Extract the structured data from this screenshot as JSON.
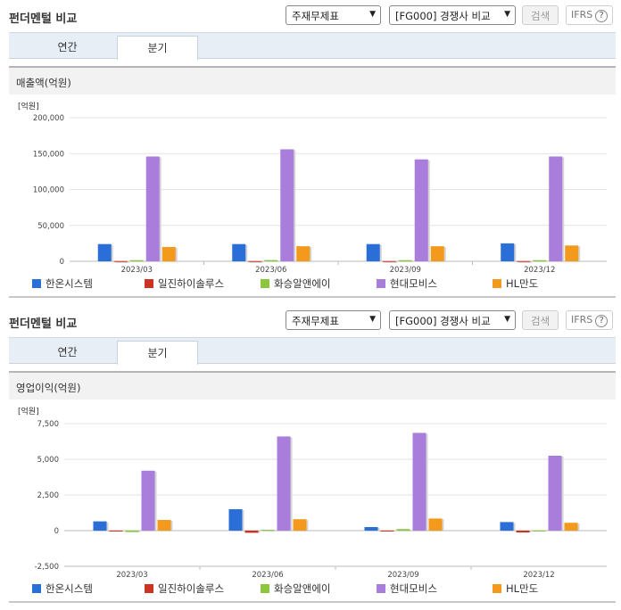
{
  "panels": [
    {
      "header": {
        "title": "펀더멘털 비교",
        "select1": "주재무제표",
        "select2": "[FG000] 경쟁사 비교",
        "search_label": "검색",
        "ifrs_label": "IFRS",
        "help_label": "?"
      },
      "tabs": [
        {
          "label": "연간"
        },
        {
          "label": "분기"
        }
      ],
      "chart_title": "매출액(억원)"
    },
    {
      "header": {
        "title": "펀더멘털 비교",
        "select1": "주재무제표",
        "select2": "[FG000] 경쟁사 비교",
        "search_label": "검색",
        "ifrs_label": "IFRS",
        "help_label": "?"
      },
      "tabs": [
        {
          "label": "연간"
        },
        {
          "label": "분기"
        }
      ],
      "chart_title": "영업이익(억원)"
    }
  ],
  "legend": [
    {
      "name": "한온시스템",
      "color": "#2a6ed8"
    },
    {
      "name": "일진하이솔루스",
      "color": "#cc3322"
    },
    {
      "name": "화승알앤에이",
      "color": "#8cc63f"
    },
    {
      "name": "현대모비스",
      "color": "#a97ddb"
    },
    {
      "name": "HL만도",
      "color": "#f39a1d"
    }
  ],
  "chart_data": [
    {
      "type": "bar",
      "unit_label": "[억원]",
      "categories": [
        "2023/03",
        "2023/06",
        "2023/09",
        "2023/12"
      ],
      "yticks": [
        "0",
        "50,000",
        "100,000",
        "150,000",
        "200,000"
      ],
      "ylim": [
        0,
        200000
      ],
      "series": [
        {
          "name": "한온시스템",
          "values": [
            24000,
            24000,
            24000,
            25000
          ]
        },
        {
          "name": "일진하이솔루스",
          "values": [
            300,
            300,
            300,
            300
          ]
        },
        {
          "name": "화승알앤에이",
          "values": [
            1600,
            1700,
            1600,
            1600
          ]
        },
        {
          "name": "현대모비스",
          "values": [
            146000,
            156000,
            142000,
            146000
          ]
        },
        {
          "name": "HL만도",
          "values": [
            20000,
            21000,
            21000,
            22000
          ]
        }
      ]
    },
    {
      "type": "bar",
      "unit_label": "[억원]",
      "categories": [
        "2023/03",
        "2023/06",
        "2023/09",
        "2023/12"
      ],
      "yticks": [
        "-2,500",
        "0",
        "2,500",
        "5,000",
        "7,500"
      ],
      "ylim": [
        -2500,
        7500
      ],
      "series": [
        {
          "name": "한온시스템",
          "values": [
            650,
            1500,
            250,
            600
          ]
        },
        {
          "name": "일진하이솔루스",
          "values": [
            -20,
            -150,
            -30,
            -130
          ]
        },
        {
          "name": "화승알앤에이",
          "values": [
            -100,
            60,
            110,
            -50
          ]
        },
        {
          "name": "현대모비스",
          "values": [
            4200,
            6600,
            6850,
            5250
          ]
        },
        {
          "name": "HL만도",
          "values": [
            750,
            800,
            850,
            550
          ]
        }
      ]
    }
  ]
}
